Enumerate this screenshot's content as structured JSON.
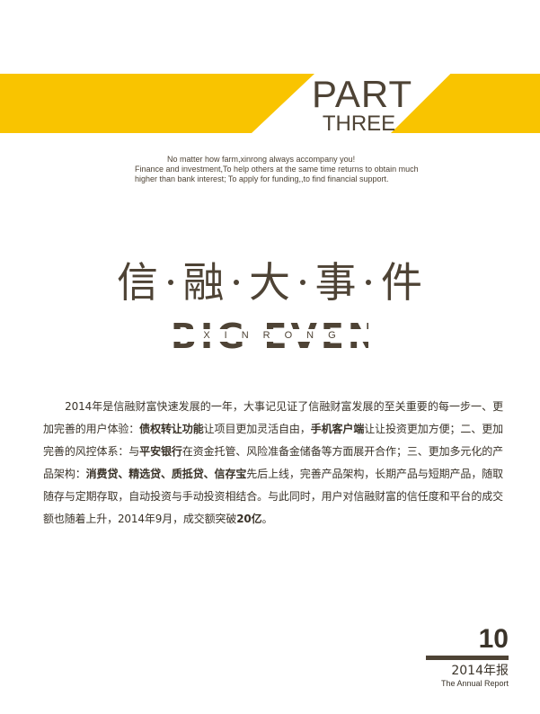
{
  "header": {
    "part_title": "PART",
    "part_sub": "THREE",
    "accent_color": "#f9c400",
    "text_color": "#4e4335"
  },
  "tagline": {
    "line1": "No matter how farm,xinrong always accompany you!",
    "line2": "Finance and investment,To help others at the same time returns to obtain much",
    "line3": "higher than bank interest; To apply for funding,,to find financial support."
  },
  "title": {
    "chars": [
      "信",
      "融",
      "大",
      "事",
      "件"
    ],
    "event_en": "BIG EVENT",
    "event_spaced": "XINRONG"
  },
  "body": {
    "s1": "2014年是信融财富快速发展的一年，大事记见证了信融财富发展的至关重要的每一步一、更加完善的用户体验：",
    "b1": "债权转让功能",
    "s2": "让项目更加灵活自由，",
    "b2": "手机客户端",
    "s3": "让让投资更加方便；二、更加完善的风控体系：与",
    "b3": "平安银行",
    "s4": "在资金托管、风险准备金储备等方面展开合作；三、更加多元化的产品架构：",
    "b4": "消费贷、精选贷、质抵贷、信存宝",
    "s5": "先后上线，完善产品架构，长期产品与短期产品，随取随存与定期存取，自动投资与手动投资相结合。与此同时，用户对信融财富的信任度和平台的成交额也随着上升，2014年9月，成交额突破",
    "b5": "20亿",
    "s6": "。"
  },
  "footer": {
    "page_number": "10",
    "year_label": "2014年报",
    "report_label": "The Annual Report"
  }
}
